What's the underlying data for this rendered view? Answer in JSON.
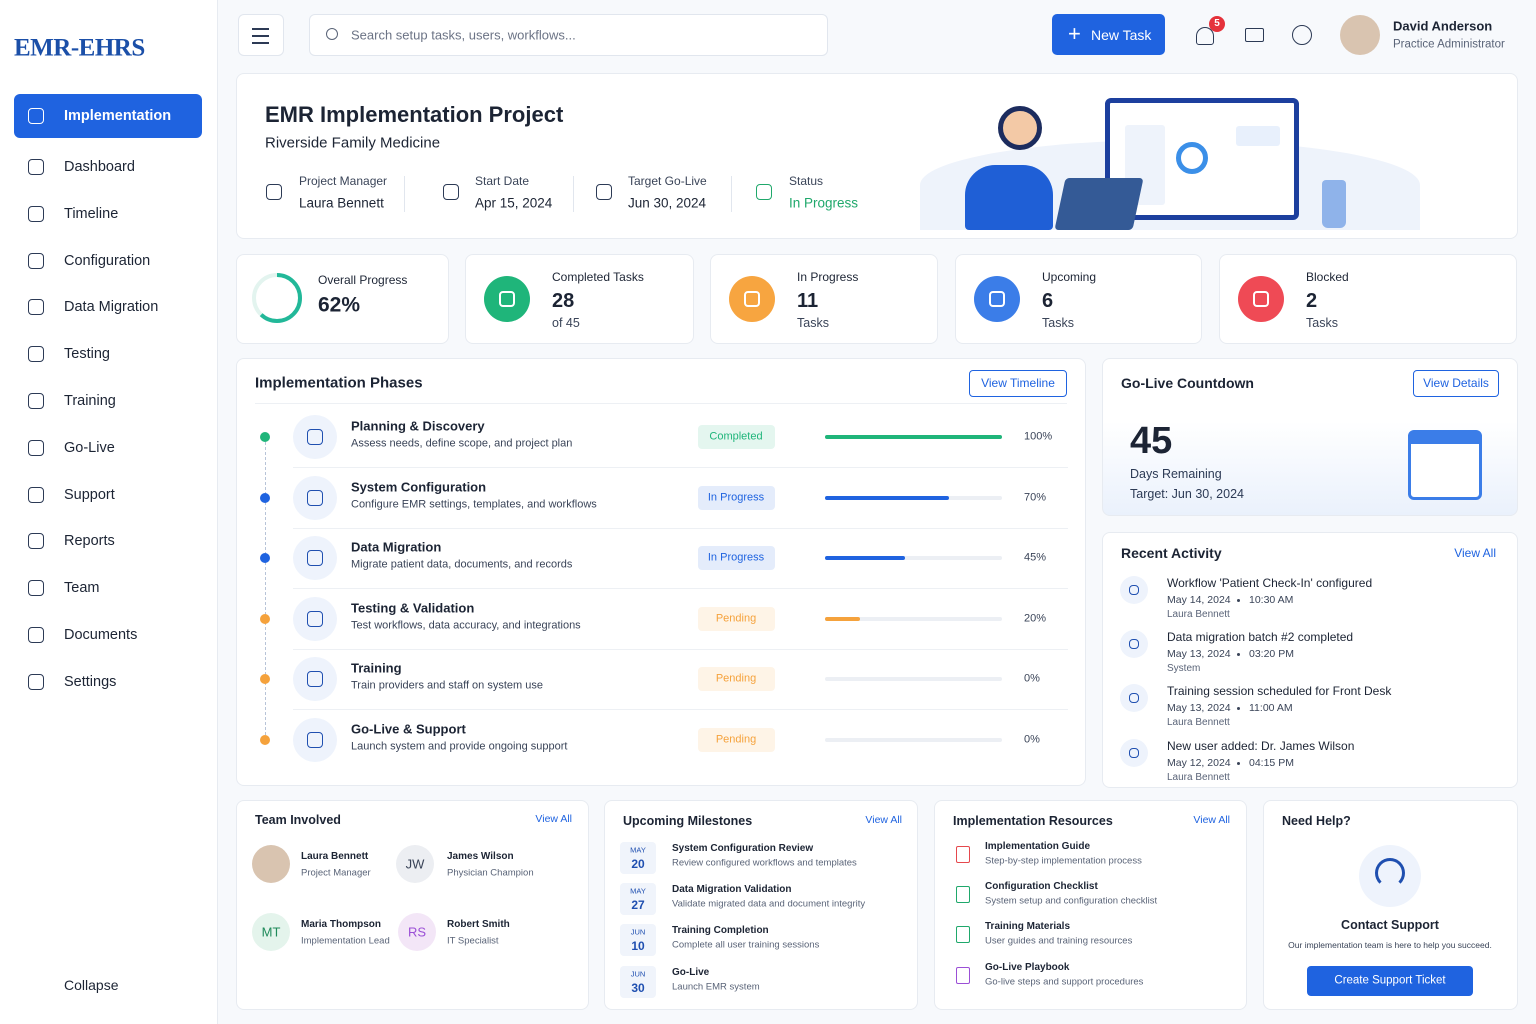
{
  "sidebar": {
    "logo": "EMR-EHRS",
    "nav": [
      "Implementation",
      "Dashboard",
      "Timeline",
      "Configuration",
      "Data Migration",
      "Testing",
      "Training",
      "Go-Live",
      "Support",
      "Reports",
      "Team",
      "Documents",
      "Settings"
    ],
    "collapse": "Collapse"
  },
  "topbar": {
    "search": "Search setup tasks, users, workflows...",
    "new_task": "New Task",
    "notifications": 5,
    "user": {
      "name": "David Anderson",
      "role": "Practice Administrator"
    }
  },
  "project": {
    "title": "EMR Implementation Project",
    "subtitle": "Riverside Family Medicine",
    "meta": [
      {
        "label": "Project Manager",
        "value": "Laura Bennett"
      },
      {
        "label": "Start Date",
        "value": "Apr 15, 2024"
      },
      {
        "label": "Target Go-Live",
        "value": "Jun 30, 2024"
      },
      {
        "label": "Status",
        "value": "In Progress"
      }
    ]
  },
  "stats": {
    "overall": {
      "label": "Overall Progress",
      "progress": {
        "value": 62,
        "label": "62%"
      }
    },
    "cards": [
      {
        "label": "Completed Tasks",
        "value": 28,
        "sub": "of 45",
        "color": "#1fb57a"
      },
      {
        "label": "In Progress",
        "value": 11,
        "sub": "Tasks",
        "color": "#f7a540"
      },
      {
        "label": "Upcoming",
        "value": 6,
        "sub": "Tasks",
        "color": "#3b7de8"
      },
      {
        "label": "Blocked",
        "value": 2,
        "sub": "Tasks",
        "color": "#ef4a55"
      }
    ]
  },
  "phases": {
    "title": "Implementation Phases",
    "action": "View Timeline",
    "items": [
      {
        "name": "Planning & Discovery",
        "desc": "Assess needs, define scope, and project plan",
        "status": "Completed",
        "color": "#1fb57a",
        "progress": {
          "value": 100,
          "label": "100%"
        }
      },
      {
        "name": "System Configuration",
        "desc": "Configure EMR settings, templates, and workflows",
        "status": "In Progress",
        "color": "#1f63e0",
        "progress": {
          "value": 70,
          "label": "70%"
        }
      },
      {
        "name": "Data Migration",
        "desc": "Migrate patient data, documents, and records",
        "status": "In Progress",
        "color": "#1f63e0",
        "progress": {
          "value": 45,
          "label": "45%"
        }
      },
      {
        "name": "Testing & Validation",
        "desc": "Test workflows, data accuracy, and integrations",
        "status": "Pending",
        "color": "#f5a23c",
        "progress": {
          "value": 20,
          "label": "20%"
        }
      },
      {
        "name": "Training",
        "desc": "Train providers and staff on system use",
        "status": "Pending",
        "color": "#f5a23c",
        "progress": {
          "value": 0,
          "label": "0%"
        }
      },
      {
        "name": "Go-Live & Support",
        "desc": "Launch system and provide ongoing support",
        "status": "Pending",
        "color": "#f5a23c",
        "progress": {
          "value": 0,
          "label": "0%"
        }
      }
    ]
  },
  "countdown": {
    "title": "Go-Live Countdown",
    "action": "View Details",
    "days": 45,
    "days_label": "Days Remaining",
    "target": "Target: Jun 30, 2024"
  },
  "activity": {
    "title": "Recent Activity",
    "action": "View All",
    "items": [
      {
        "text": "Workflow 'Patient Check-In' configured",
        "date": "May 14, 2024",
        "time": "10:30 AM",
        "by": "Laura Bennett"
      },
      {
        "text": "Data migration batch #2 completed",
        "date": "May 13, 2024",
        "time": "03:20 PM",
        "by": "System"
      },
      {
        "text": "Training session scheduled for Front Desk",
        "date": "May 13, 2024",
        "time": "11:00 AM",
        "by": "Laura Bennett"
      },
      {
        "text": "New user added: Dr. James Wilson",
        "date": "May 12, 2024",
        "time": "04:15 PM",
        "by": "Laura Bennett"
      }
    ]
  },
  "team": {
    "title": "Team Involved",
    "action": "View All",
    "members": [
      {
        "name": "Laura Bennett",
        "role": "Project Manager"
      },
      {
        "initials": "JW",
        "name": "James Wilson",
        "role": "Physician Champion"
      },
      {
        "initials": "MT",
        "name": "Maria Thompson",
        "role": "Implementation Lead"
      },
      {
        "initials": "RS",
        "name": "Robert Smith",
        "role": "IT Specialist"
      }
    ]
  },
  "milestones": {
    "title": "Upcoming Milestones",
    "action": "View All",
    "items": [
      {
        "month": "MAY",
        "day": 20,
        "name": "System Configuration Review",
        "desc": "Review configured workflows and templates"
      },
      {
        "month": "MAY",
        "day": 27,
        "name": "Data Migration Validation",
        "desc": "Validate migrated data and document integrity"
      },
      {
        "month": "JUN",
        "day": 10,
        "name": "Training Completion",
        "desc": "Complete all user training sessions"
      },
      {
        "month": "JUN",
        "day": 30,
        "name": "Go-Live",
        "desc": "Launch EMR system"
      }
    ]
  },
  "resources": {
    "title": "Implementation Resources",
    "action": "View All",
    "items": [
      {
        "name": "Implementation Guide",
        "desc": "Step-by-step implementation process",
        "color": "#e5484d"
      },
      {
        "name": "Configuration Checklist",
        "desc": "System setup and configuration checklist",
        "color": "#1fa86b"
      },
      {
        "name": "Training Materials",
        "desc": "User guides and training resources",
        "color": "#1fa86b"
      },
      {
        "name": "Go-Live Playbook",
        "desc": "Go-live steps and support procedures",
        "color": "#9b4fd6"
      }
    ]
  },
  "help": {
    "title": "Need Help?",
    "heading": "Contact Support",
    "text": "Our implementation team is here to help you succeed.",
    "button": "Create Support Ticket"
  }
}
